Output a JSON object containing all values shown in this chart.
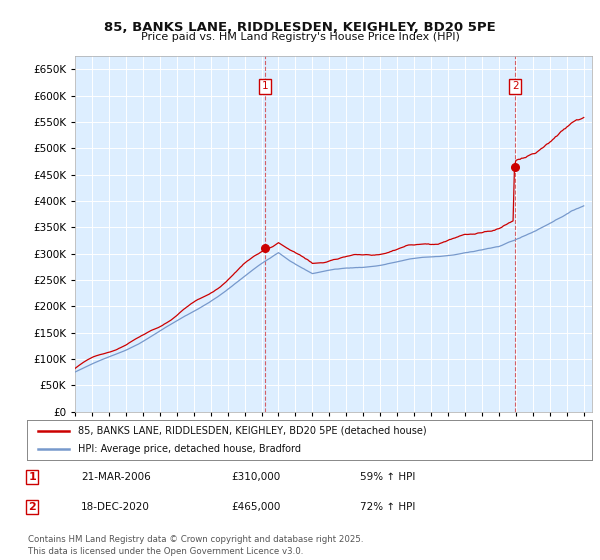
{
  "title_line1": "85, BANKS LANE, RIDDLESDEN, KEIGHLEY, BD20 5PE",
  "title_line2": "Price paid vs. HM Land Registry's House Price Index (HPI)",
  "background_color": "#ffffff",
  "plot_bg_color": "#ddeeff",
  "grid_color": "#ffffff",
  "red_color": "#cc0000",
  "blue_color": "#7799cc",
  "transaction1_year": 2006.21,
  "transaction1_price": 310000,
  "transaction1_date": "21-MAR-2006",
  "transaction1_hpi": "59% ↑ HPI",
  "transaction2_year": 2020.96,
  "transaction2_price": 465000,
  "transaction2_date": "18-DEC-2020",
  "transaction2_hpi": "72% ↑ HPI",
  "legend_label1": "85, BANKS LANE, RIDDLESDEN, KEIGHLEY, BD20 5PE (detached house)",
  "legend_label2": "HPI: Average price, detached house, Bradford",
  "footer": "Contains HM Land Registry data © Crown copyright and database right 2025.\nThis data is licensed under the Open Government Licence v3.0.",
  "ylim_min": 0,
  "ylim_max": 675000,
  "yticks": [
    0,
    50000,
    100000,
    150000,
    200000,
    250000,
    300000,
    350000,
    400000,
    450000,
    500000,
    550000,
    600000,
    650000
  ],
  "xmin": 1995,
  "xmax": 2025.5
}
